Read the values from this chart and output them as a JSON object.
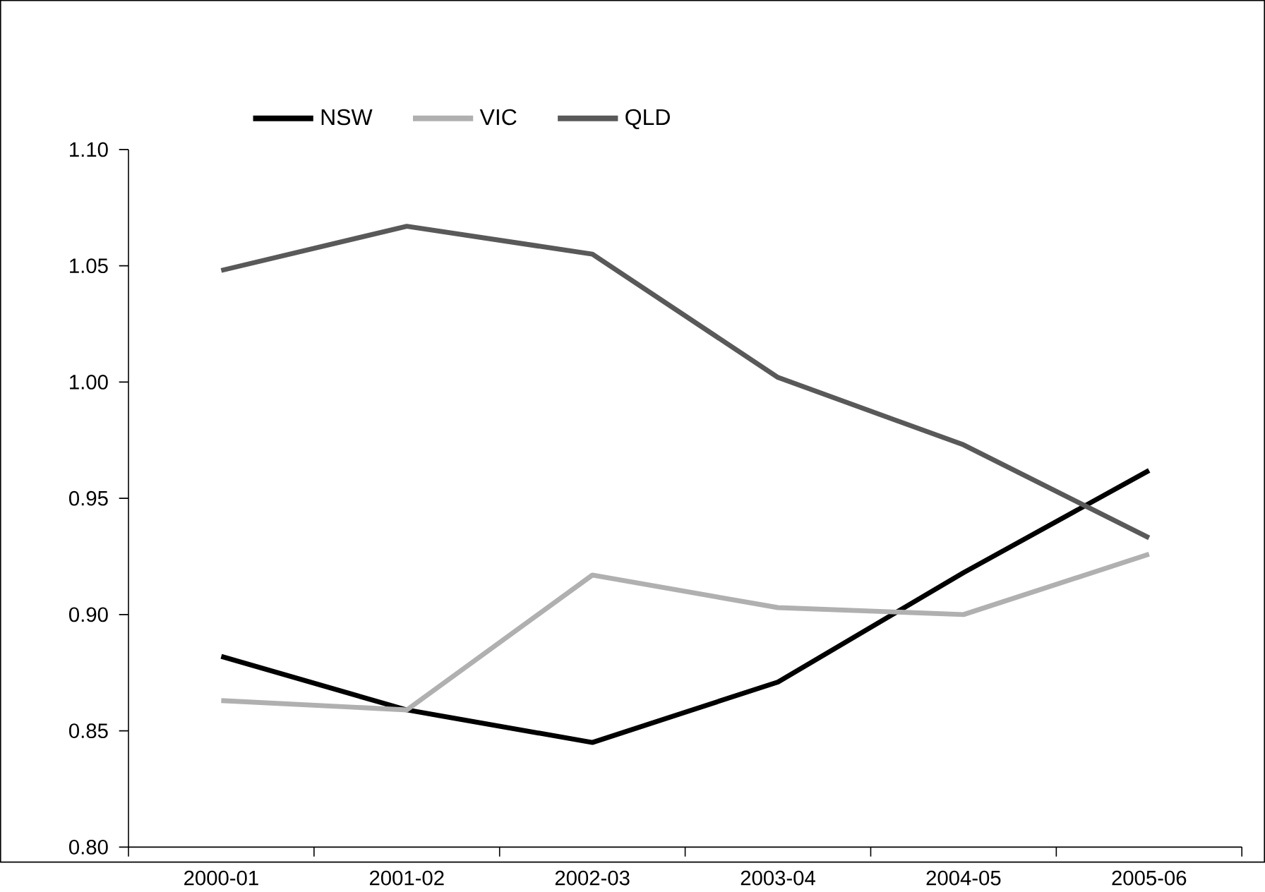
{
  "chart_data": {
    "type": "line",
    "categories": [
      "2000-01",
      "2001-02",
      "2002-03",
      "2003-04",
      "2004-05",
      "2005-06"
    ],
    "series": [
      {
        "name": "NSW",
        "color": "#000000",
        "values": [
          0.882,
          0.859,
          0.845,
          0.871,
          0.918,
          0.962
        ]
      },
      {
        "name": "VIC",
        "color": "#b0b0b0",
        "values": [
          0.863,
          0.859,
          0.917,
          0.903,
          0.9,
          0.926
        ]
      },
      {
        "name": "QLD",
        "color": "#595959",
        "values": [
          1.048,
          1.067,
          1.055,
          1.002,
          0.973,
          0.933
        ]
      }
    ],
    "ylim": [
      0.8,
      1.1
    ],
    "yticks": [
      {
        "value": 0.8,
        "label": "0.80"
      },
      {
        "value": 0.85,
        "label": "0.85"
      },
      {
        "value": 0.9,
        "label": "0.90"
      },
      {
        "value": 0.95,
        "label": "0.95"
      },
      {
        "value": 1.0,
        "label": "1.00"
      },
      {
        "value": 1.05,
        "label": "1.05"
      },
      {
        "value": 1.1,
        "label": "1.10"
      }
    ],
    "grid": false,
    "legend": "top",
    "marker": "none",
    "line_style": "solid"
  }
}
